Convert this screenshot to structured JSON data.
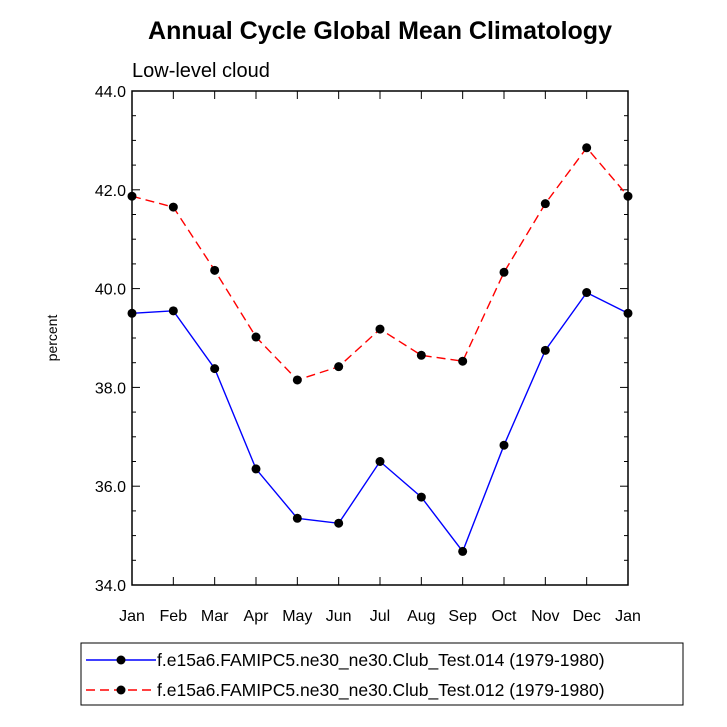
{
  "chart_data": {
    "type": "line",
    "title": "Annual Cycle Global Mean Climatology",
    "subtitle": "Low-level cloud",
    "ylabel": "percent",
    "xlabel": "",
    "categories": [
      "Jan",
      "Feb",
      "Mar",
      "Apr",
      "May",
      "Jun",
      "Jul",
      "Aug",
      "Sep",
      "Oct",
      "Nov",
      "Dec",
      "Jan"
    ],
    "ylim": [
      34.0,
      44.0
    ],
    "yticks": [
      34.0,
      36.0,
      38.0,
      40.0,
      42.0,
      44.0
    ],
    "ytick_labels": [
      "34.0",
      "36.0",
      "38.0",
      "40.0",
      "42.0",
      "44.0"
    ],
    "series": [
      {
        "name": "f.e15a6.FAMIPC5.ne30_ne30.Club_Test.014 (1979-1980)",
        "color": "#0000ff",
        "dash": "solid",
        "values": [
          39.5,
          39.55,
          38.38,
          36.35,
          35.35,
          35.25,
          36.5,
          35.78,
          34.68,
          36.83,
          38.75,
          39.92,
          39.5
        ]
      },
      {
        "name": "f.e15a6.FAMIPC5.ne30_ne30.Club_Test.012 (1979-1980)",
        "color": "#ff0000",
        "dash": "dashed",
        "values": [
          41.87,
          41.65,
          40.37,
          39.02,
          38.15,
          38.42,
          39.18,
          38.65,
          38.53,
          40.33,
          41.72,
          42.85,
          41.87
        ]
      }
    ],
    "legend_position": "bottom"
  }
}
